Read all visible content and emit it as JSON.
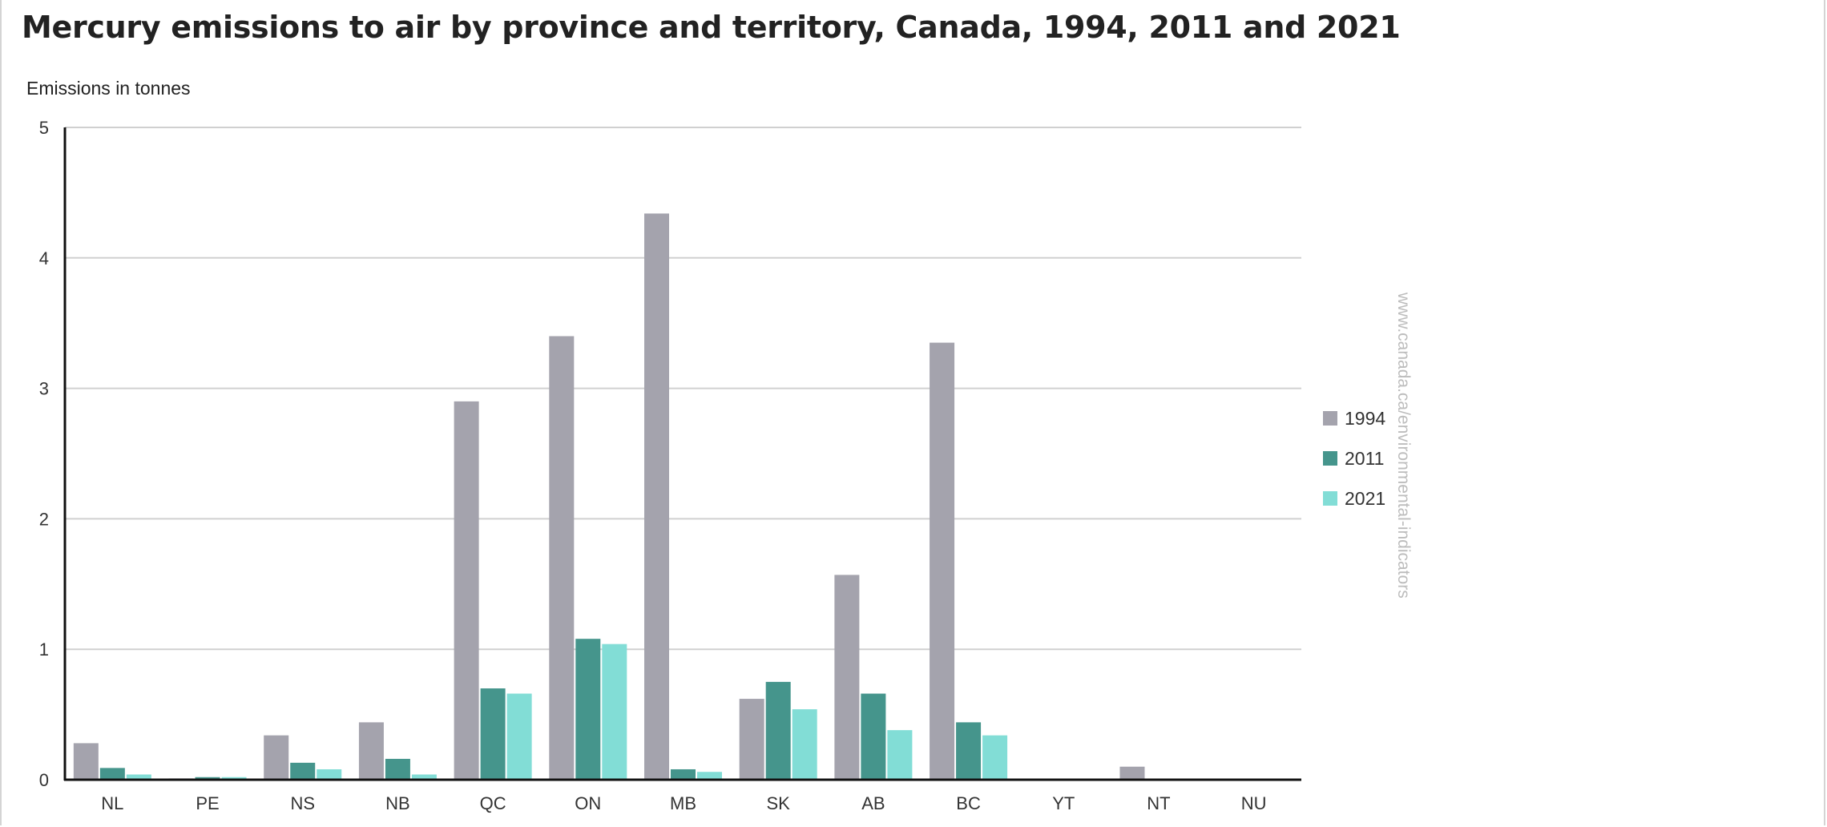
{
  "page": {
    "title": "Mercury emissions to air by province and territory, Canada, 1994, 2011 and 2021"
  },
  "watermark": "www.canada.ca/environmental-indicators",
  "chart_data": {
    "type": "bar",
    "title": "Mercury emissions to air by province and territory, Canada, 1994, 2011 and 2021",
    "xlabel": "",
    "ylabel": "Emissions in tonnes",
    "ylim": [
      0,
      5
    ],
    "yticks": [
      0,
      1,
      2,
      3,
      4,
      5
    ],
    "grid": true,
    "legend_position": "right",
    "categories": [
      "NL",
      "PE",
      "NS",
      "NB",
      "QC",
      "ON",
      "MB",
      "SK",
      "AB",
      "BC",
      "YT",
      "NT",
      "NU"
    ],
    "series": [
      {
        "name": "1994",
        "color": "#a4a3ad",
        "values": [
          0.28,
          0.01,
          0.34,
          0.44,
          2.9,
          3.4,
          4.34,
          0.62,
          1.57,
          3.35,
          0.0,
          0.1,
          0.0
        ]
      },
      {
        "name": "2011",
        "color": "#45958c",
        "values": [
          0.09,
          0.02,
          0.13,
          0.16,
          0.7,
          1.08,
          0.08,
          0.75,
          0.66,
          0.44,
          0.0,
          0.0,
          0.0
        ]
      },
      {
        "name": "2021",
        "color": "#82ddd6",
        "values": [
          0.04,
          0.02,
          0.08,
          0.04,
          0.66,
          1.04,
          0.06,
          0.54,
          0.38,
          0.34,
          0.0,
          0.0,
          0.0
        ]
      }
    ]
  }
}
